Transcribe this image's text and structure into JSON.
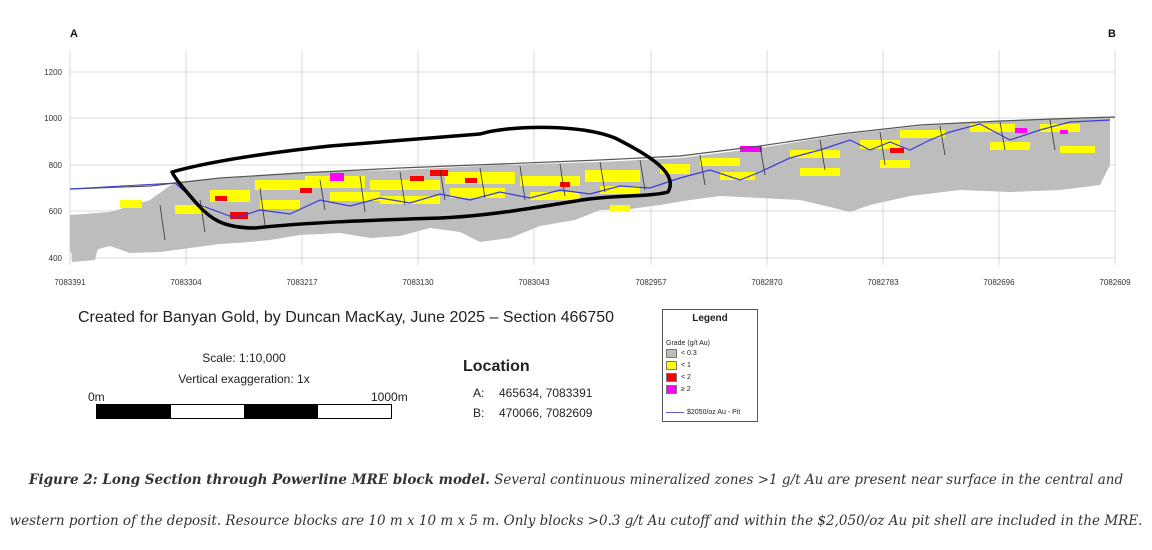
{
  "section": {
    "end_left": "A",
    "end_right": "B",
    "elevation_ticks": [
      "1200",
      "1000",
      "800",
      "600",
      "400"
    ],
    "northing_ticks": [
      "7083391",
      "7083304",
      "7083217",
      "7083130",
      "7083043",
      "7082957",
      "7082870",
      "7082783",
      "7082696",
      "7082609"
    ],
    "colors": {
      "grade_lt_0_3": "#bdbdbd",
      "grade_lt_1": "#ffff00",
      "grade_lt_2": "#ff0000",
      "grade_ge_2": "#ff00ff",
      "pit_shell": "#3b3bd6",
      "topography": "#555555",
      "annotation_outline": "#000000"
    }
  },
  "credit": "Created for Banyan Gold, by Duncan MacKay, June 2025 – Section 466750",
  "scale": {
    "text": "Scale: 1:10,000",
    "exaggeration": "Vertical exaggeration: 1x",
    "start_label": "0m",
    "end_label": "1000m"
  },
  "location": {
    "title": "Location",
    "a_label": "A:",
    "a_value": "465634, 7083391",
    "b_label": "B:",
    "b_value": "470066, 7082609"
  },
  "legend": {
    "title": "Legend",
    "subtitle": "Grade (g/t Au)",
    "items": [
      "< 0.3",
      "< 1",
      "< 2",
      "≥ 2"
    ],
    "line_label": "$2050/oz Au - Pit"
  },
  "caption": {
    "bold": "Figure 2: Long Section through Powerline MRE block model.",
    "line1_rest": " Several continuous mineralized zones >1 g/t Au are present near surface in the central and",
    "line2": "western portion of the deposit. Resource blocks are 10 m x 10 m x 5 m. Only blocks >0.3 g/t Au cutoff and within the $2,050/oz Au pit shell are included in the MRE."
  }
}
